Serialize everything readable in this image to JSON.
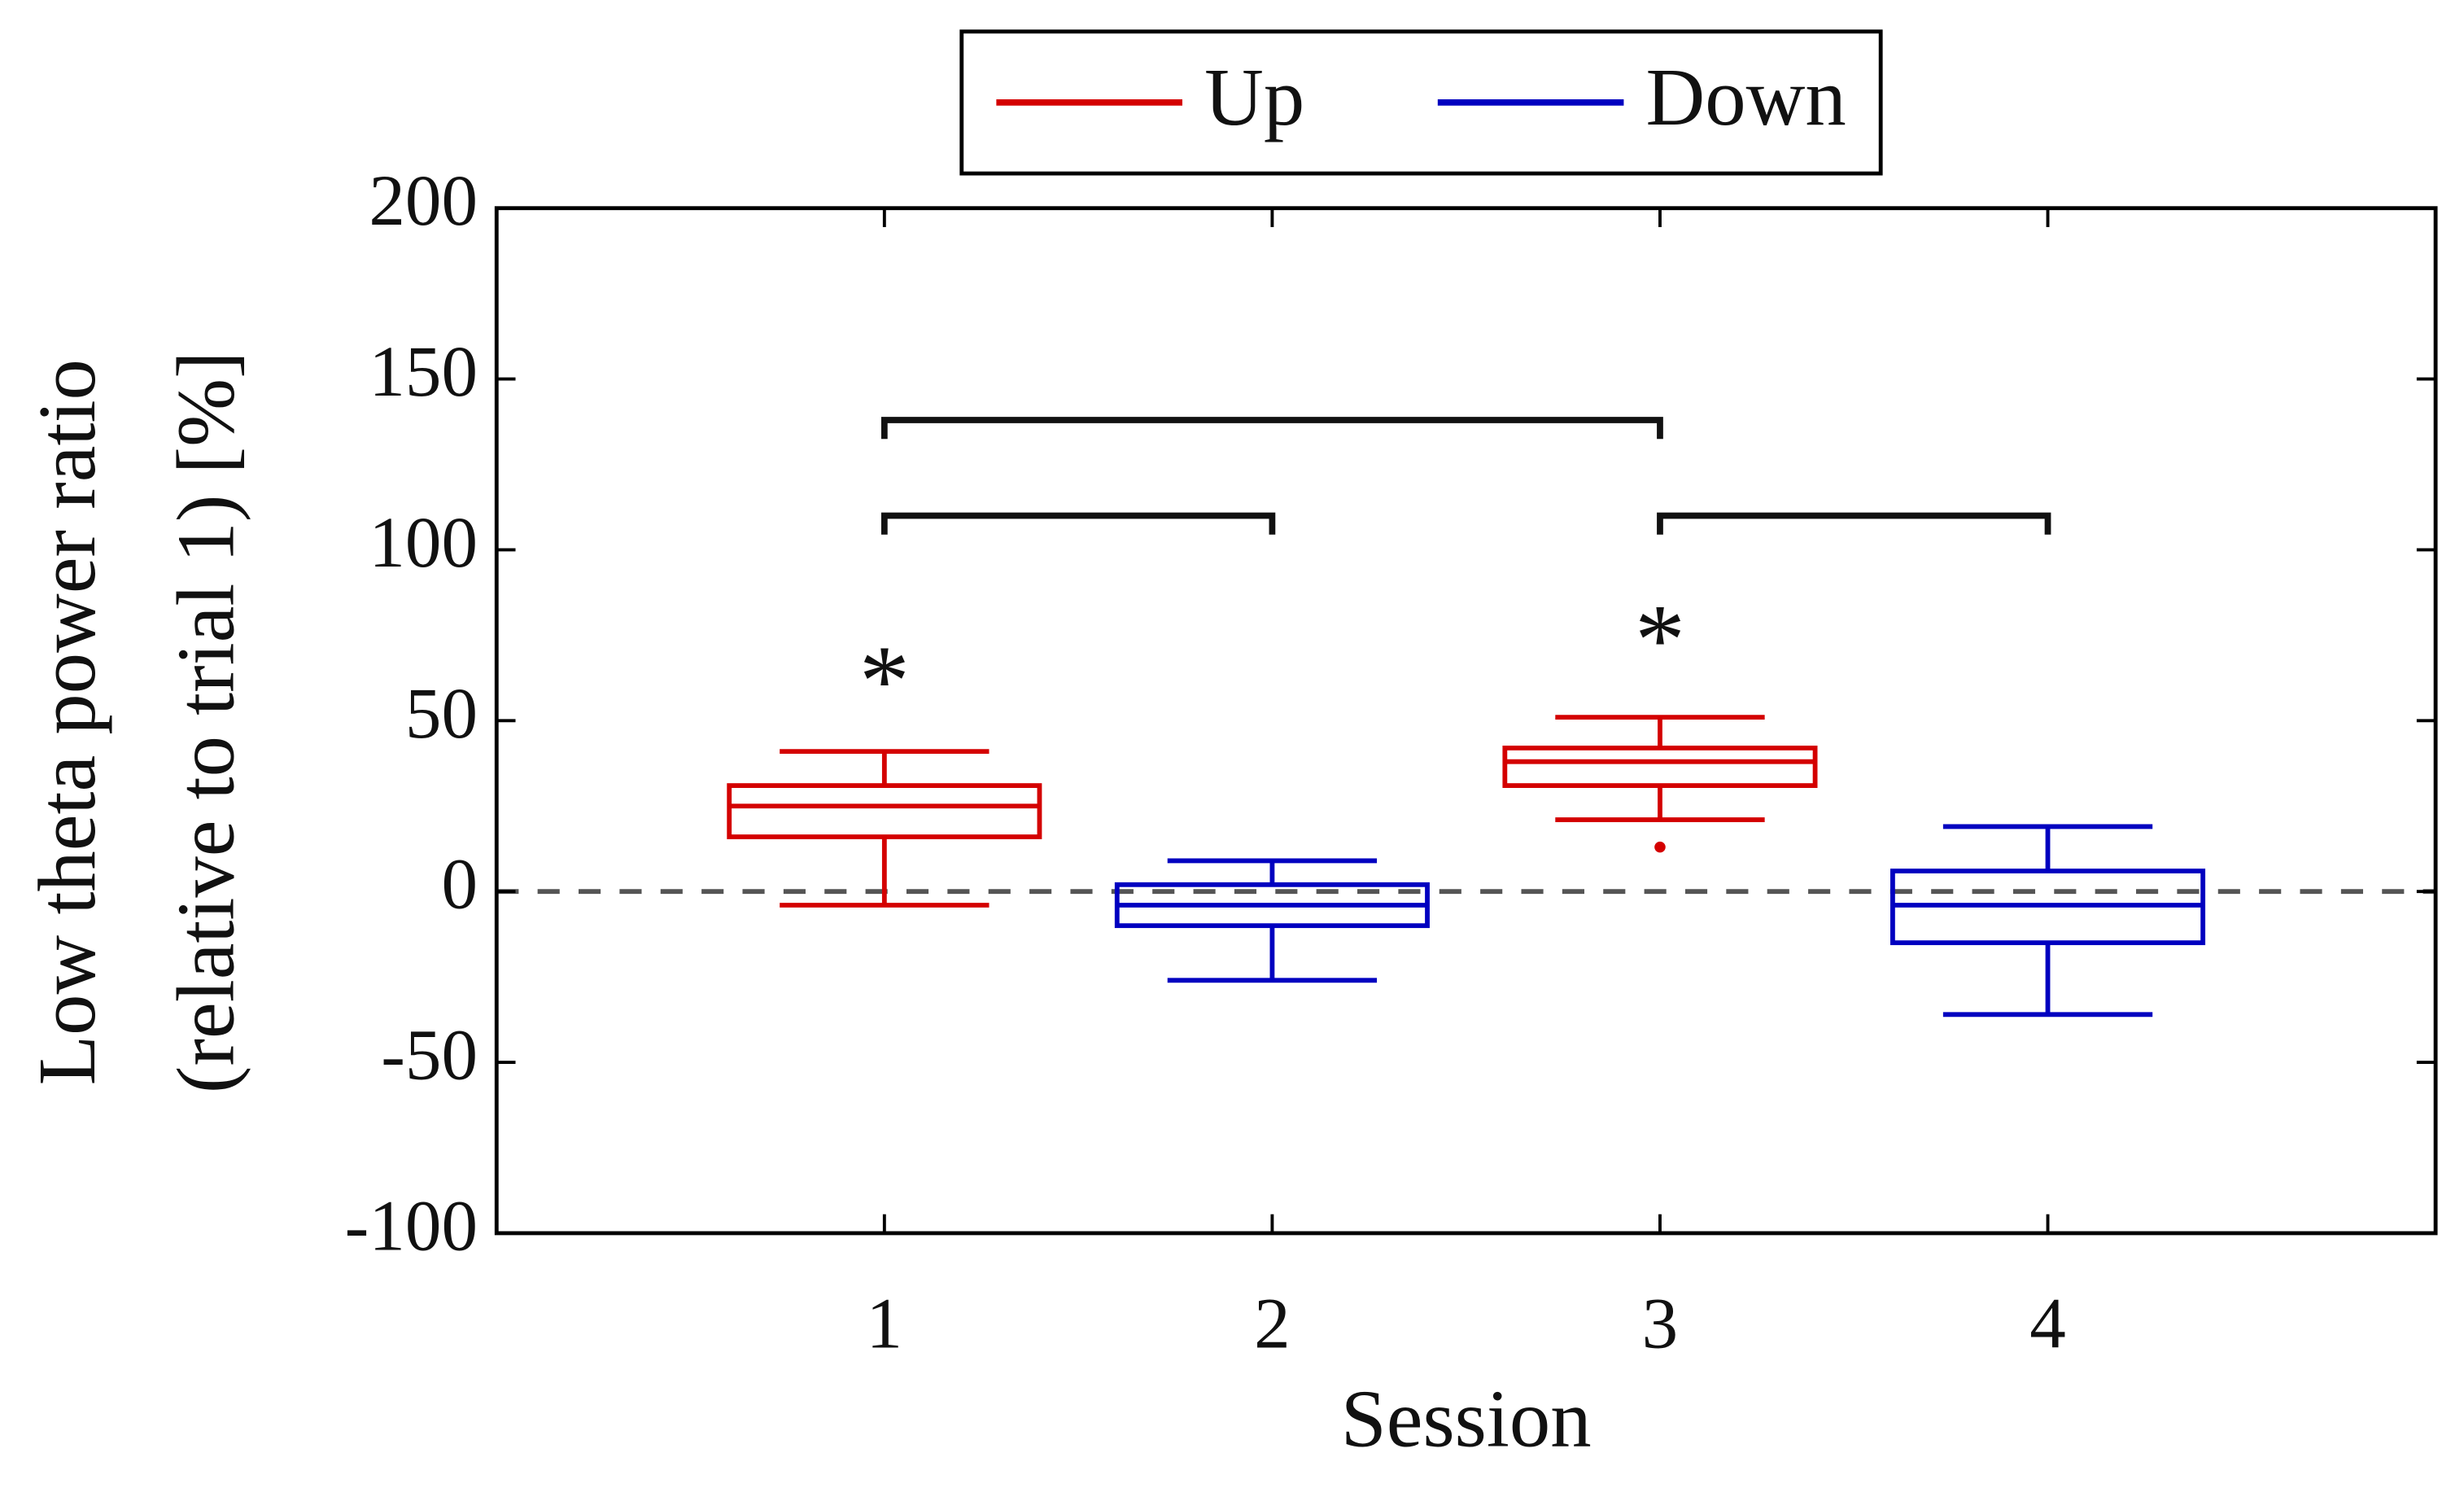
{
  "chart_data": {
    "type": "box",
    "xlabel": "Session",
    "ylabel": [
      "Low theta power ratio",
      "(relative to trial 1) [%]"
    ],
    "xlim": [
      0,
      5
    ],
    "xticks": [
      1,
      2,
      3,
      4
    ],
    "ylim": [
      -100,
      200
    ],
    "yticks": [
      -100,
      -50,
      0,
      50,
      100,
      150,
      200
    ],
    "legend": "top",
    "reference_line": 0,
    "series": [
      {
        "name": "Up",
        "color": "#d40000",
        "x": [
          1,
          3
        ],
        "whisker_low": [
          -4,
          21
        ],
        "q1": [
          16,
          31
        ],
        "median": [
          25,
          38
        ],
        "q3": [
          31,
          42
        ],
        "whisker_high": [
          41,
          51
        ],
        "outliers": [
          [],
          [
            13
          ]
        ]
      },
      {
        "name": "Down",
        "color": "#0000c0",
        "x": [
          2,
          4
        ],
        "whisker_low": [
          -26,
          -36
        ],
        "q1": [
          -10,
          -15
        ],
        "median": [
          -4,
          -4
        ],
        "q3": [
          2,
          6
        ],
        "whisker_high": [
          9,
          19
        ],
        "outliers": [
          [],
          []
        ]
      }
    ],
    "brackets": [
      {
        "x": [
          1,
          3
        ],
        "y": 138
      },
      {
        "x": [
          1,
          2
        ],
        "y": 110
      },
      {
        "x": [
          3,
          4
        ],
        "y": 110
      }
    ],
    "annotations": [
      {
        "text": "*",
        "x": 1,
        "y": 65
      },
      {
        "text": "*",
        "x": 3,
        "y": 77
      }
    ]
  }
}
